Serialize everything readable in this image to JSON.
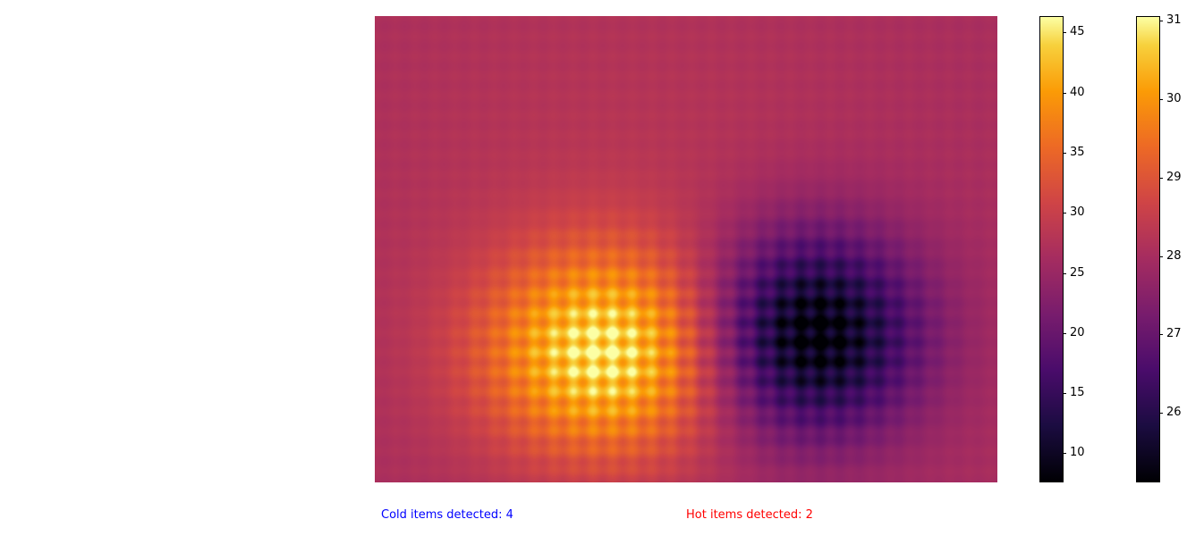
{
  "heatmap": {
    "colormap": "inferno",
    "hot_spot": {
      "center": [
        0.37,
        0.72
      ],
      "peak": 46.0
    },
    "cold_spot": {
      "center": [
        0.7,
        0.68
      ],
      "min": 8.0
    },
    "background_level": 28.0
  },
  "colorbar_1": {
    "ticks": [
      "10",
      "15",
      "20",
      "25",
      "30",
      "35",
      "40",
      "45"
    ],
    "range": [
      7.5,
      46.3
    ],
    "tick_values": [
      10,
      15,
      20,
      25,
      30,
      35,
      40,
      45
    ]
  },
  "colorbar_2": {
    "ticks": [
      "26",
      "27",
      "28",
      "29",
      "30",
      "31"
    ],
    "range": [
      25.1,
      31.05
    ],
    "tick_values": [
      26,
      27,
      28,
      29,
      30,
      31
    ]
  },
  "status": {
    "cold_text": "Cold items detected: 4",
    "cold_color": "#0000ff",
    "hot_text": "Hot items detected: 2",
    "hot_color": "#ff0000"
  }
}
